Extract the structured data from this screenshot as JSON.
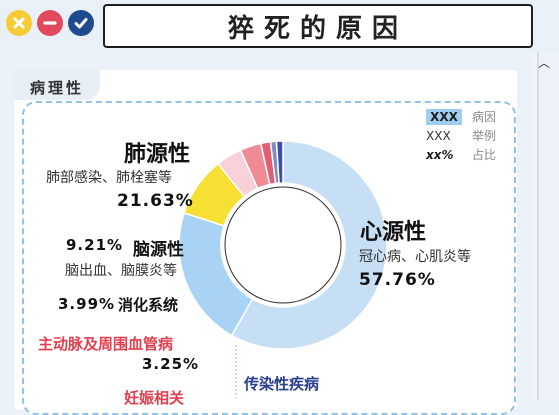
{
  "title": "猝死的原因",
  "section_tab": "病理性",
  "legend": [
    {
      "key": "XXX",
      "value": "病因",
      "style": "box"
    },
    {
      "key": "XXX",
      "value": "举例",
      "style": "plain"
    },
    {
      "key": "xx%",
      "value": "占比",
      "style": "bold"
    }
  ],
  "window_buttons": [
    {
      "name": "close-button",
      "color": "#f5cc36"
    },
    {
      "name": "minimize-button",
      "color": "#e14a5c"
    },
    {
      "name": "confirm-button",
      "color": "#1f4a8e"
    }
  ],
  "colors": {
    "heart": "#c7dff5",
    "lung": "#a9d3f5",
    "brain": "#f7df33",
    "digestive": "#f8d0d8",
    "aorta": "#f08a94",
    "pregnancy": "#e25f73",
    "infection": "#7f8cc8",
    "other": "#3d4fa0"
  },
  "labels": {
    "heart": {
      "name": "心源性",
      "examples": "冠心病、心肌炎等",
      "pct": "57.76%"
    },
    "lung": {
      "name": "肺源性",
      "examples": "肺部感染、肺栓塞等",
      "pct": "21.63%"
    },
    "brain": {
      "name": "脑源性",
      "examples": "脑出血、脑膜炎等",
      "pct": "9.21%"
    },
    "digestive": {
      "name": "消化系统",
      "pct": "3.99%"
    },
    "aorta": {
      "name": "主动脉及周围血管病",
      "pct": "3.25%"
    },
    "pregnancy": {
      "name": "妊娠相关"
    },
    "infection": {
      "name": "传染性疾病"
    }
  },
  "chart_data": {
    "type": "pie",
    "variant": "donut",
    "title": "猝死的原因",
    "slices": [
      {
        "name": "心源性",
        "value": 57.76,
        "color": "#c7dff5"
      },
      {
        "name": "肺源性",
        "value": 21.63,
        "color": "#a9d3f5"
      },
      {
        "name": "脑源性",
        "value": 9.21,
        "color": "#f7df33"
      },
      {
        "name": "消化系统",
        "value": 3.99,
        "color": "#f8d0d8"
      },
      {
        "name": "主动脉及周围血管病",
        "value": 3.25,
        "color": "#f08a94"
      },
      {
        "name": "妊娠相关",
        "value": 1.5,
        "color": "#e25f73"
      },
      {
        "name": "传染性疾病",
        "value": 0.9,
        "color": "#7f8cc8"
      },
      {
        "name": "",
        "value": 1.0,
        "color": "#3d4fa0"
      }
    ],
    "start_angle_deg": 0,
    "direction": "clockwise"
  }
}
